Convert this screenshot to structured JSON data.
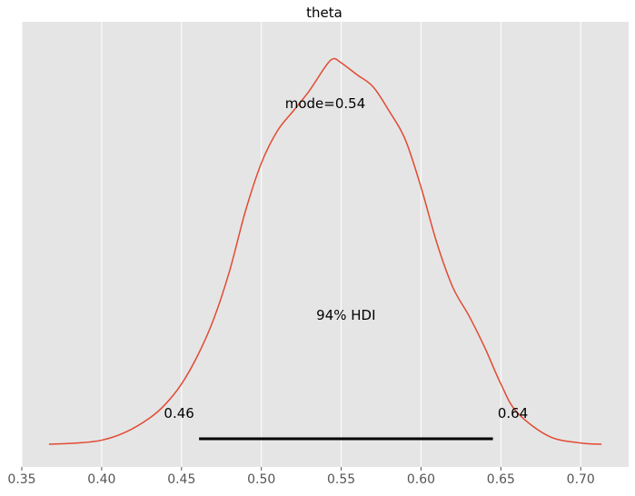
{
  "chart_data": {
    "type": "line",
    "title": "theta",
    "xlabel": "",
    "ylabel": "",
    "xlim": [
      0.35,
      0.73
    ],
    "xticks": [
      0.35,
      0.4,
      0.45,
      0.5,
      0.55,
      0.6,
      0.65,
      0.7
    ],
    "xtick_labels": [
      "0.35",
      "0.40",
      "0.45",
      "0.50",
      "0.55",
      "0.60",
      "0.65",
      "0.70"
    ],
    "grid": true,
    "series": [
      {
        "color": "#e24a33",
        "x": [
          0.367,
          0.385,
          0.4,
          0.415,
          0.43,
          0.44,
          0.45,
          0.46,
          0.47,
          0.48,
          0.49,
          0.5,
          0.51,
          0.52,
          0.53,
          0.54,
          0.545,
          0.55,
          0.56,
          0.57,
          0.58,
          0.59,
          0.6,
          0.61,
          0.62,
          0.63,
          0.64,
          0.65,
          0.66,
          0.68,
          0.7,
          0.713
        ],
        "y": [
          0.0,
          0.003,
          0.01,
          0.03,
          0.065,
          0.1,
          0.15,
          0.22,
          0.31,
          0.43,
          0.58,
          0.7,
          0.78,
          0.83,
          0.88,
          0.94,
          0.96,
          0.95,
          0.92,
          0.89,
          0.83,
          0.76,
          0.64,
          0.5,
          0.39,
          0.32,
          0.24,
          0.15,
          0.08,
          0.02,
          0.003,
          0.0
        ]
      }
    ],
    "annotations": {
      "mode_label": "mode=0.54",
      "hdi_label": "94% HDI",
      "hdi_low_label": "0.46",
      "hdi_high_label": "0.64"
    },
    "hdi": {
      "low": 0.461,
      "high": 0.645,
      "color": "#000000"
    },
    "mode": 0.54,
    "colors": {
      "plot_background": "#e5e5e5",
      "grid": "#ffffff",
      "line": "#e24a33",
      "tick_text": "#555555"
    }
  }
}
